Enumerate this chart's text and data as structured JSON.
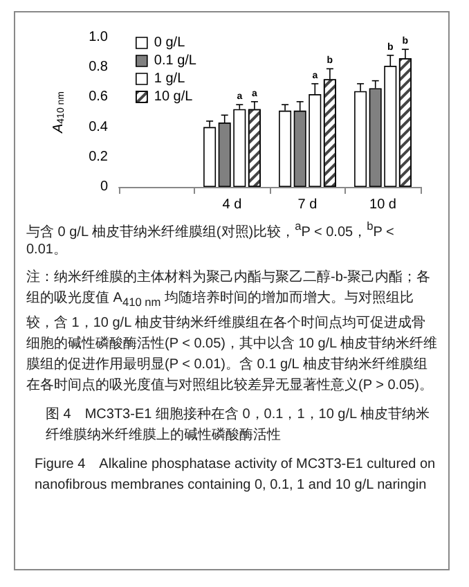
{
  "chart_data": {
    "type": "bar",
    "ylabel": "A$_{410 nm}$",
    "categories": [
      null,
      "4 d",
      "7 d",
      "10 d"
    ],
    "series": [
      {
        "name": "0 g/L",
        "color": "#ffffff",
        "values": [
          null,
          0.4,
          0.51,
          0.64
        ],
        "errors": [
          null,
          0.04,
          0.04,
          0.05
        ]
      },
      {
        "name": "0.1 g/L",
        "color": "#808080",
        "values": [
          null,
          0.43,
          0.51,
          0.66
        ],
        "errors": [
          null,
          0.05,
          0.06,
          0.05
        ]
      },
      {
        "name": "1 g/L",
        "color": "#ffffff",
        "values": [
          null,
          0.52,
          0.62,
          0.81
        ],
        "errors": [
          null,
          0.03,
          0.07,
          0.07
        ],
        "value_labels": [
          null,
          "a",
          "a",
          "b"
        ]
      },
      {
        "name": "10 g/L",
        "color": "#ffffff",
        "values": [
          null,
          0.52,
          0.72,
          0.86
        ],
        "errors": [
          null,
          0.05,
          0.07,
          0.06
        ],
        "value_labels": [
          null,
          "a",
          "b",
          "b"
        ]
      }
    ],
    "ylim": [
      0,
      1
    ],
    "yticks": [
      0,
      0.2,
      0.4,
      0.6,
      0.8,
      {
        "value": 1,
        "label": "1.0"
      }
    ],
    "grid": false,
    "legend": "top left",
    "annotations": [
      "与含 0 g/L 柚皮苷纳米纤维膜组(对照)比较，$^{a}$P < 0.05，$^{b}$P < 0.01。",
      "注：纳米纤维膜的主体材料为聚己内酯与聚乙二醇-b-聚己内酯；各组的吸光度值 A$_{410 nm}$ 均随培养时间的增加而增大。与对照组比较，含 1，10 g/L 柚皮苷纳米纤维膜组在各个时间点均可促进成骨细胞的碱性磷酸酶活性(P < 0.05)，其中以含 10 g/L 柚皮苷纳米纤维膜组的促进作用最明显(P < 0.01)。含 0.1 g/L 柚皮苷纳米纤维膜组在各时间点的吸光度值与对照组比较差异无显著性意义(P > 0.05)。",
      "图 4　MC3T3-E1 细胞接种在含 0，0.1，1，10 g/L 柚皮苷纳米纤维膜纳米纤维膜上的碱性磷酸酶活性",
      "Figure 4　Alkaline phosphatase activity of MC3T3-E1 cultured on nanofibrous membranes containing 0, 0.1, 1 and 10 g/L naringin"
    ]
  }
}
